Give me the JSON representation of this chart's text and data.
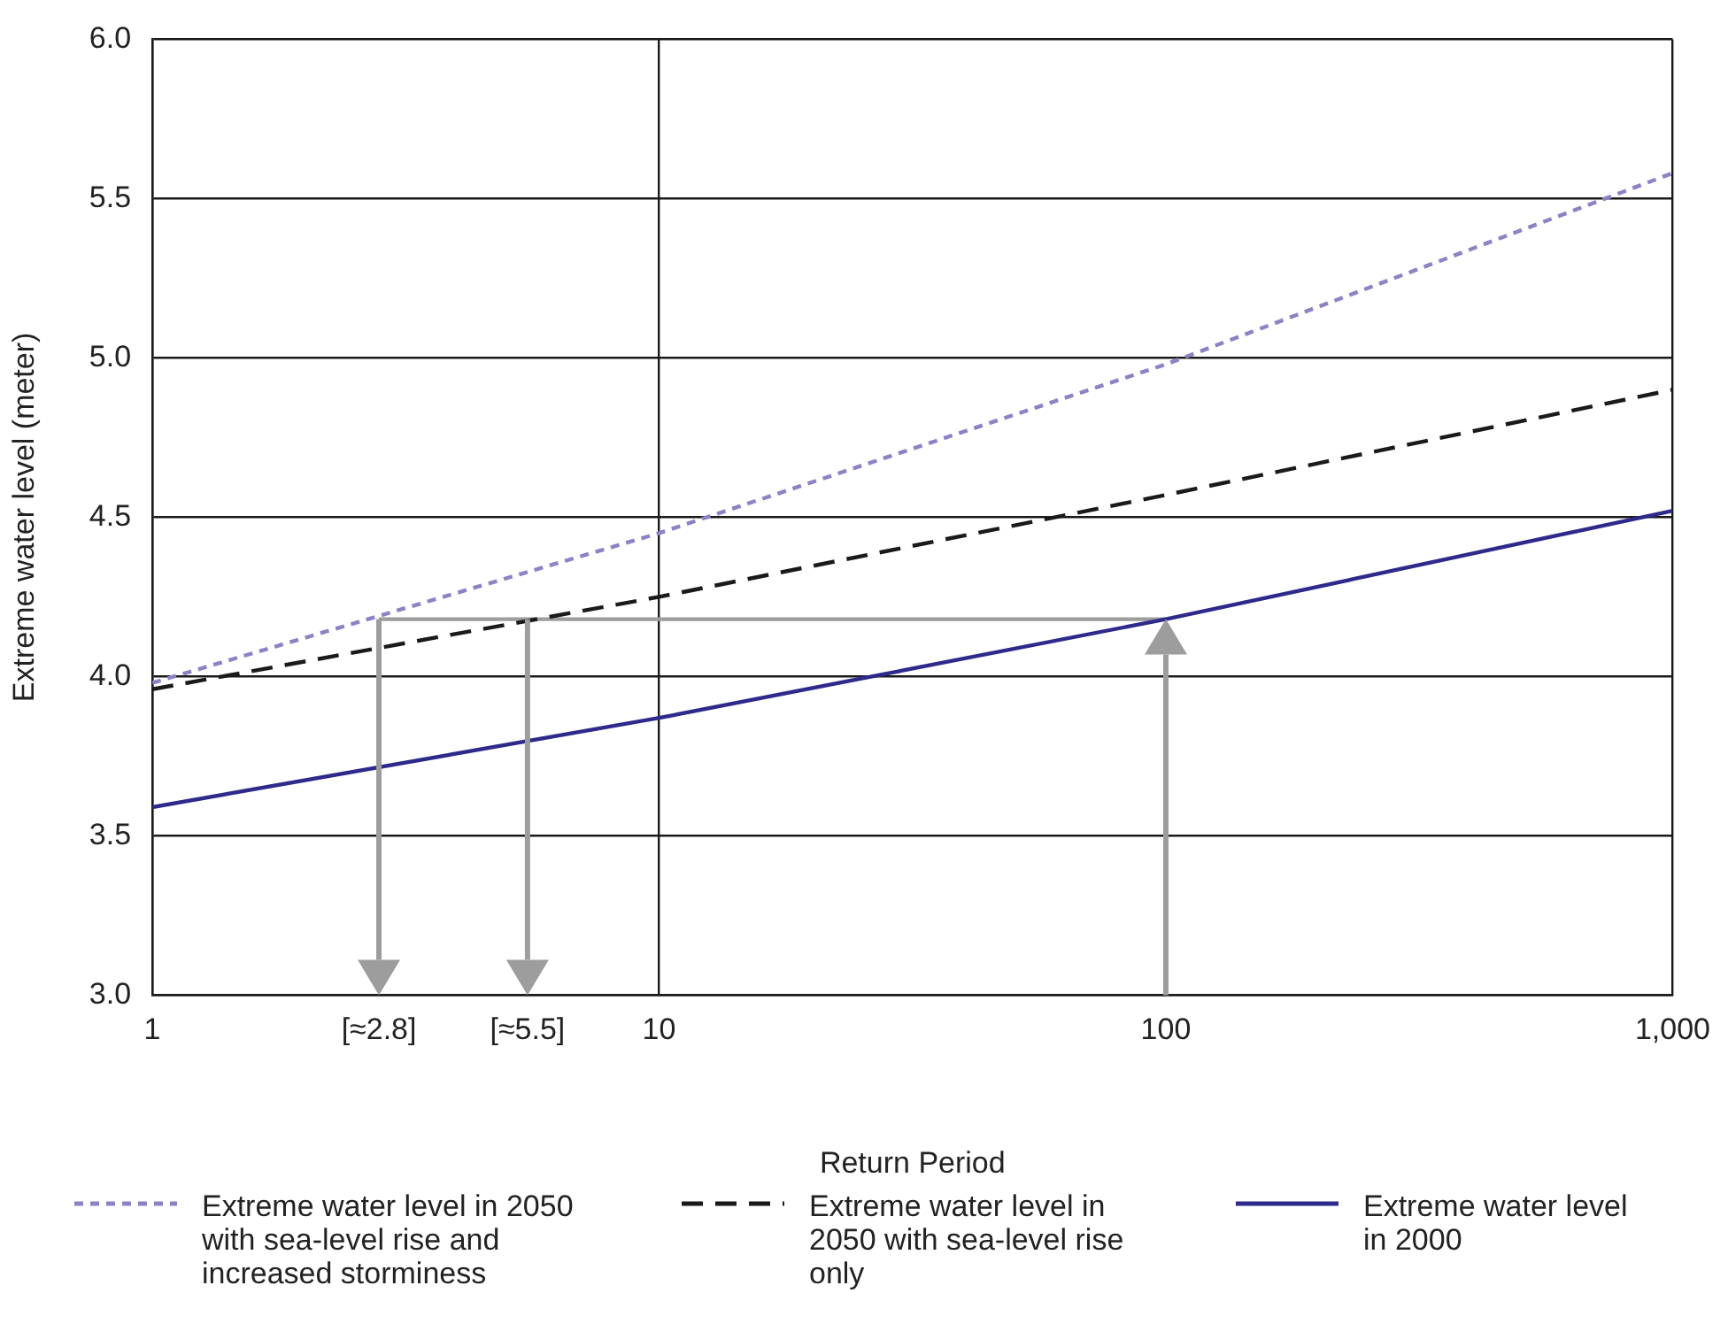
{
  "chart_data": {
    "type": "line",
    "xlabel": "Return Period",
    "ylabel": "Extreme water level (meter)",
    "log": "x",
    "grid": true,
    "legend": "bottom",
    "marker": "none",
    "xlim": [
      1,
      1000
    ],
    "xticks": [
      1,
      {
        "value": 2.8,
        "label": "[≈2.8]"
      },
      {
        "value": 5.5,
        "label": "[≈5.5]"
      },
      10,
      100,
      {
        "value": 1000,
        "label": "1,000"
      }
    ],
    "ylim": [
      3,
      6
    ],
    "yticks": [
      {
        "value": 3,
        "label": "3.0"
      },
      3.5,
      {
        "value": 4,
        "label": "4.0"
      },
      4.5,
      {
        "value": 5,
        "label": "5.0"
      },
      5.5,
      {
        "value": 6,
        "label": "6.0"
      }
    ],
    "series": [
      {
        "name": "Extreme water level in 2050 with sea-level rise and increased storminess",
        "color": "#8c83c4",
        "line_style": "dotted",
        "x": [
          1,
          10,
          100,
          1000
        ],
        "values": [
          3.98,
          4.45,
          4.98,
          5.58
        ]
      },
      {
        "name": "Extreme water level in 2050 with sea-level rise only",
        "color": "#1a1a1a",
        "line_style": "dashed",
        "x": [
          1,
          10,
          100,
          1000
        ],
        "values": [
          3.96,
          4.25,
          4.57,
          4.9
        ]
      },
      {
        "name": "Extreme water level in 2000",
        "color": "#2e2a8c",
        "line_style": "solid",
        "x": [
          1,
          10,
          100,
          1000
        ],
        "values": [
          3.59,
          3.87,
          4.18,
          4.52
        ]
      },
      {
        "color": "#9d9d9d",
        "line_style": "solid",
        "x": [
          2.8,
          5.5,
          100
        ],
        "values": [
          4.18,
          4.18,
          4.18
        ]
      }
    ]
  }
}
